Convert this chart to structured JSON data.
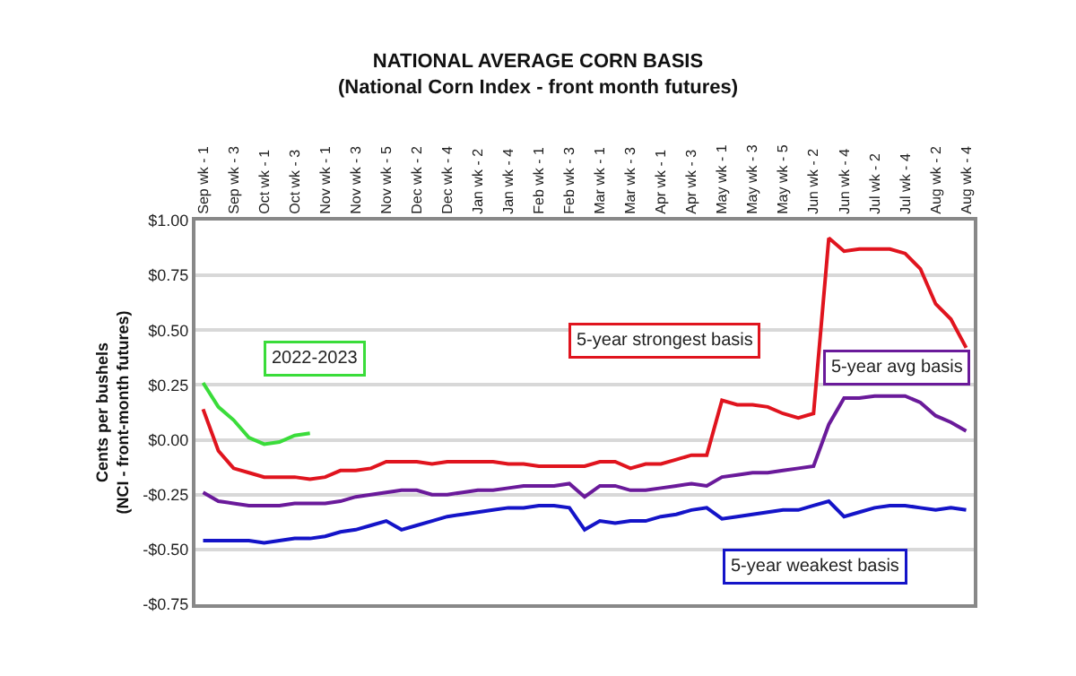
{
  "chart_data": {
    "type": "line",
    "title": "NATIONAL AVERAGE CORN BASIS",
    "subtitle": "(National Corn Index - front month futures)",
    "ylabel": "Cents per bushels\n(NCI - front-month futures)",
    "categories": [
      "Sep wk - 1",
      null,
      "Sep wk - 3",
      null,
      "Oct wk - 1",
      null,
      "Oct wk - 3",
      null,
      "Nov wk - 1",
      null,
      "Nov wk - 3",
      null,
      "Nov wk - 5",
      null,
      "Dec wk - 2",
      null,
      "Dec wk - 4",
      null,
      "Jan wk - 2",
      null,
      "Jan wk - 4",
      null,
      "Feb wk - 1",
      null,
      "Feb wk - 3",
      null,
      "Mar wk - 1",
      null,
      "Mar wk - 3",
      null,
      "Apr wk - 1",
      null,
      "Apr wk - 3",
      null,
      "May wk - 1",
      null,
      "May wk - 3",
      null,
      "May wk - 5",
      null,
      "Jun wk - 2",
      null,
      "Jun wk - 4",
      null,
      "Jul wk - 2",
      null,
      "Jul wk - 4",
      null,
      "Aug wk - 2",
      null,
      "Aug wk - 4"
    ],
    "series": [
      {
        "name": "5-year strongest basis",
        "color": "#e0141e",
        "values": [
          0.14,
          -0.05,
          -0.13,
          -0.15,
          -0.17,
          -0.17,
          -0.17,
          -0.18,
          -0.17,
          -0.14,
          -0.14,
          -0.13,
          -0.1,
          -0.1,
          -0.1,
          -0.11,
          -0.1,
          -0.1,
          -0.1,
          -0.1,
          -0.11,
          -0.11,
          -0.12,
          -0.12,
          -0.12,
          -0.12,
          -0.1,
          -0.1,
          -0.13,
          -0.11,
          -0.11,
          -0.09,
          -0.07,
          -0.07,
          0.18,
          0.16,
          0.16,
          0.15,
          0.12,
          0.1,
          0.12,
          0.92,
          0.86,
          0.87,
          0.87,
          0.87,
          0.85,
          0.78,
          0.62,
          0.55,
          0.42
        ]
      },
      {
        "name": "5-year avg basis",
        "color": "#6a1a9a",
        "values": [
          -0.24,
          -0.28,
          -0.29,
          -0.3,
          -0.3,
          -0.3,
          -0.29,
          -0.29,
          -0.29,
          -0.28,
          -0.26,
          -0.25,
          -0.24,
          -0.23,
          -0.23,
          -0.25,
          -0.25,
          -0.24,
          -0.23,
          -0.23,
          -0.22,
          -0.21,
          -0.21,
          -0.21,
          -0.2,
          -0.26,
          -0.21,
          -0.21,
          -0.23,
          -0.23,
          -0.22,
          -0.21,
          -0.2,
          -0.21,
          -0.17,
          -0.16,
          -0.15,
          -0.15,
          -0.14,
          -0.13,
          -0.12,
          0.07,
          0.19,
          0.19,
          0.2,
          0.2,
          0.2,
          0.17,
          0.11,
          0.08,
          0.04
        ]
      },
      {
        "name": "5-year weakest basis",
        "color": "#1414c8",
        "values": [
          -0.46,
          -0.46,
          -0.46,
          -0.46,
          -0.47,
          -0.46,
          -0.45,
          -0.45,
          -0.44,
          -0.42,
          -0.41,
          -0.39,
          -0.37,
          -0.41,
          -0.39,
          -0.37,
          -0.35,
          -0.34,
          -0.33,
          -0.32,
          -0.31,
          -0.31,
          -0.3,
          -0.3,
          -0.31,
          -0.41,
          -0.37,
          -0.38,
          -0.37,
          -0.37,
          -0.35,
          -0.34,
          -0.32,
          -0.31,
          -0.36,
          -0.35,
          -0.34,
          -0.33,
          -0.32,
          -0.32,
          -0.3,
          -0.28,
          -0.35,
          -0.33,
          -0.31,
          -0.3,
          -0.3,
          -0.31,
          -0.32,
          -0.31,
          -0.32
        ]
      },
      {
        "name": "2022-2023",
        "color": "#3adc3a",
        "values": [
          0.26,
          0.15,
          0.09,
          0.01,
          -0.02,
          -0.01,
          0.02,
          0.03,
          null,
          null,
          null,
          null,
          null,
          null,
          null,
          null,
          null,
          null,
          null,
          null,
          null,
          null,
          null,
          null,
          null,
          null,
          null,
          null,
          null,
          null,
          null,
          null,
          null,
          null,
          null,
          null,
          null,
          null,
          null,
          null,
          null,
          null,
          null,
          null,
          null,
          null,
          null,
          null,
          null,
          null,
          null
        ]
      }
    ],
    "ylim": [
      -0.75,
      1.0
    ],
    "yticks": [
      {
        "value": -0.75,
        "label": "-$0.75"
      },
      {
        "value": -0.5,
        "label": "-$0.50"
      },
      {
        "value": -0.25,
        "label": "-$0.25"
      },
      {
        "value": 0,
        "label": "$0.00"
      },
      {
        "value": 0.25,
        "label": "$0.25"
      },
      {
        "value": 0.5,
        "label": "$0.50"
      },
      {
        "value": 0.75,
        "label": "$0.75"
      },
      {
        "value": 1.0,
        "label": "$1.00"
      }
    ],
    "grid": "y",
    "legend": false,
    "marker": "none",
    "line_style": "solid"
  }
}
